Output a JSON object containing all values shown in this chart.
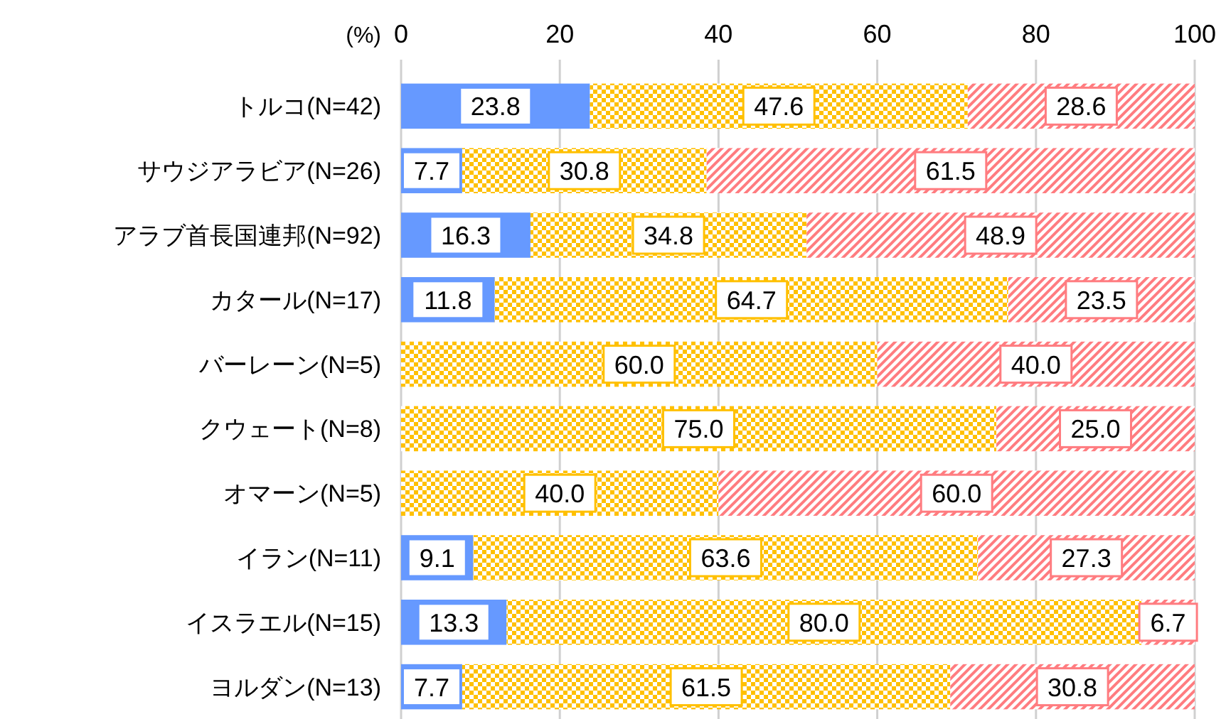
{
  "chart_data": {
    "type": "bar",
    "orientation": "horizontal",
    "stacked": true,
    "xlabel": "(%)",
    "categories": [
      "トルコ(N=42)",
      "サウジアラビア(N=26)",
      "アラブ首長国連邦(N=92)",
      "カタール(N=17)",
      "バーレーン(N=5)",
      "クウェート(N=8)",
      "オマーン(N=5)",
      "イラン(N=11)",
      "イスラエル(N=15)",
      "ヨルダン(N=13)"
    ],
    "series": [
      {
        "color": "#6699ff",
        "values": [
          23.8,
          7.7,
          16.3,
          11.8,
          0,
          0,
          0,
          9.1,
          13.3,
          7.7
        ],
        "value_labels": [
          "23.8",
          "7.7",
          "16.3",
          "11.8",
          null,
          null,
          null,
          "9.1",
          "13.3",
          "7.7"
        ]
      },
      {
        "color": "#ffc000",
        "values": [
          47.6,
          30.8,
          34.8,
          64.7,
          60.0,
          75.0,
          40.0,
          63.6,
          80.0,
          61.5
        ],
        "value_labels": [
          "47.6",
          "30.8",
          "34.8",
          "64.7",
          "60.0",
          "75.0",
          "40.0",
          "63.6",
          "80.0",
          "61.5"
        ]
      },
      {
        "color": "#ff7c80",
        "values": [
          28.6,
          61.5,
          48.9,
          23.5,
          40.0,
          25.0,
          60.0,
          27.3,
          6.7,
          30.8
        ],
        "value_labels": [
          "28.6",
          "61.5",
          "48.9",
          "23.5",
          "40.0",
          "25.0",
          "60.0",
          "27.3",
          "6.7",
          "30.8"
        ]
      }
    ],
    "xlim": [
      0,
      100
    ],
    "xticks": [
      0,
      20,
      40,
      60,
      80,
      100
    ],
    "grid": "x"
  }
}
